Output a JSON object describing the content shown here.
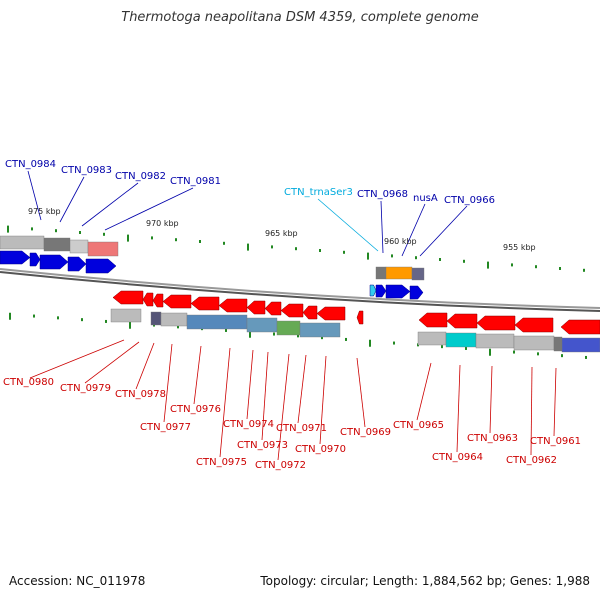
{
  "title": "Thermotoga neapolitana DSM 4359, complete genome",
  "footer": {
    "accession": "Accession: NC_011978",
    "topology": "Topology: circular; Length: 1,884,562 bp; Genes: 1,988"
  },
  "colors": {
    "forward_gene": "#0000dd",
    "reverse_gene": "#ff0000",
    "trna": "#33ccee",
    "tick": "#228822",
    "backbone": "#888888",
    "label_forward": "#0000aa",
    "label_reverse": "#cc0000",
    "label_trna": "#00aadd"
  },
  "scale_labels": [
    "975 kbp",
    "970 kbp",
    "965 kbp",
    "960 kbp",
    "955 kbp"
  ],
  "genes_top": [
    {
      "name": "CTN_0984",
      "type": "cds"
    },
    {
      "name": "CTN_0983",
      "type": "cds"
    },
    {
      "name": "CTN_0982",
      "type": "cds"
    },
    {
      "name": "CTN_0981",
      "type": "cds"
    },
    {
      "name": "CTN_trnaSer3",
      "type": "trna"
    },
    {
      "name": "CTN_0968",
      "type": "cds"
    },
    {
      "name": "nusA",
      "type": "cds"
    },
    {
      "name": "CTN_0966",
      "type": "cds"
    }
  ],
  "genes_bottom": [
    {
      "name": "CTN_0980"
    },
    {
      "name": "CTN_0979"
    },
    {
      "name": "CTN_0978"
    },
    {
      "name": "CTN_0977"
    },
    {
      "name": "CTN_0976"
    },
    {
      "name": "CTN_0975"
    },
    {
      "name": "CTN_0974"
    },
    {
      "name": "CTN_0973"
    },
    {
      "name": "CTN_0972"
    },
    {
      "name": "CTN_0971"
    },
    {
      "name": "CTN_0970"
    },
    {
      "name": "CTN_0969"
    },
    {
      "name": "CTN_0965"
    },
    {
      "name": "CTN_0964"
    },
    {
      "name": "CTN_0963"
    },
    {
      "name": "CTN_0962"
    },
    {
      "name": "CTN_0961"
    }
  ]
}
